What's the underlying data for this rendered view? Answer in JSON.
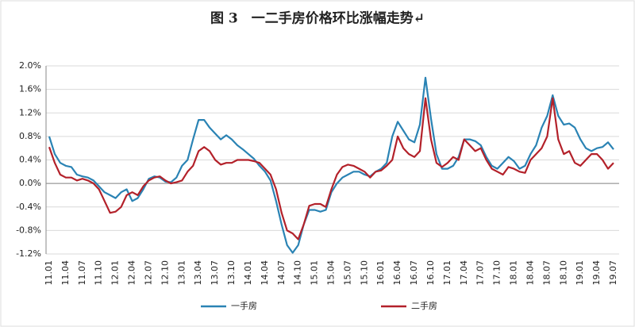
{
  "chart_data": {
    "type": "line",
    "title": "图 3　一二手房价格环比涨幅走势↵",
    "categories": [
      "11.01",
      null,
      null,
      "11.04",
      null,
      null,
      "11.07",
      null,
      null,
      "11.10",
      null,
      null,
      "12.01",
      null,
      null,
      "12.04",
      null,
      null,
      "12.07",
      null,
      null,
      "12.10",
      null,
      null,
      "13.01",
      null,
      null,
      "13.04",
      null,
      null,
      "13.07",
      null,
      null,
      "13.10",
      null,
      null,
      "14.01",
      null,
      null,
      "14.04",
      null,
      null,
      "14.07",
      null,
      null,
      "14.10",
      null,
      null,
      "15.01",
      null,
      null,
      "15.04",
      null,
      null,
      "15.07",
      null,
      null,
      "15.10",
      null,
      null,
      "16.01",
      null,
      null,
      "16.04",
      null,
      null,
      "16.07",
      null,
      null,
      "16.10",
      null,
      null,
      "17.01",
      null,
      null,
      "17.04",
      null,
      null,
      "17.07",
      null,
      null,
      "17.10",
      null,
      null,
      "18.01",
      null,
      null,
      "18.04",
      null,
      null,
      "18.07",
      null,
      null,
      "18.10",
      null,
      null,
      "19.01",
      null,
      null,
      "19.04",
      null,
      null,
      "19.07"
    ],
    "series": [
      {
        "name": "一手房",
        "color": "#2a83b4",
        "values": [
          0.8,
          0.5,
          0.35,
          0.3,
          0.28,
          0.15,
          0.12,
          0.1,
          0.05,
          -0.05,
          -0.15,
          -0.2,
          -0.25,
          -0.15,
          -0.1,
          -0.3,
          -0.25,
          -0.1,
          0.08,
          0.12,
          0.1,
          0.03,
          0.02,
          0.1,
          0.3,
          0.4,
          0.75,
          1.08,
          1.08,
          0.95,
          0.85,
          0.75,
          0.82,
          0.75,
          0.65,
          0.58,
          0.5,
          0.42,
          0.3,
          0.2,
          0.05,
          -0.3,
          -0.7,
          -1.05,
          -1.18,
          -1.05,
          -0.7,
          -0.45,
          -0.45,
          -0.48,
          -0.45,
          -0.15,
          0.0,
          0.1,
          0.15,
          0.2,
          0.2,
          0.15,
          0.12,
          0.2,
          0.25,
          0.35,
          0.8,
          1.05,
          0.9,
          0.75,
          0.7,
          1.0,
          1.8,
          1.1,
          0.5,
          0.25,
          0.25,
          0.3,
          0.45,
          0.75,
          0.75,
          0.72,
          0.65,
          0.45,
          0.3,
          0.25,
          0.35,
          0.45,
          0.38,
          0.25,
          0.3,
          0.5,
          0.65,
          0.95,
          1.15,
          1.5,
          1.15,
          1.0,
          1.02,
          0.95,
          0.75,
          0.6,
          0.55,
          0.6,
          0.62,
          0.7,
          0.58
        ]
      },
      {
        "name": "二手房",
        "color": "#b3212a",
        "values": [
          0.62,
          0.35,
          0.15,
          0.1,
          0.1,
          0.05,
          0.08,
          0.05,
          0.0,
          -0.1,
          -0.3,
          -0.5,
          -0.48,
          -0.4,
          -0.2,
          -0.15,
          -0.2,
          -0.05,
          0.05,
          0.1,
          0.12,
          0.05,
          0.0,
          0.02,
          0.05,
          0.2,
          0.3,
          0.55,
          0.62,
          0.55,
          0.4,
          0.32,
          0.35,
          0.35,
          0.4,
          0.4,
          0.4,
          0.38,
          0.35,
          0.25,
          0.15,
          -0.1,
          -0.5,
          -0.8,
          -0.85,
          -0.95,
          -0.7,
          -0.38,
          -0.35,
          -0.35,
          -0.4,
          -0.1,
          0.15,
          0.28,
          0.32,
          0.3,
          0.25,
          0.2,
          0.1,
          0.2,
          0.22,
          0.3,
          0.4,
          0.8,
          0.6,
          0.5,
          0.45,
          0.55,
          1.45,
          0.75,
          0.35,
          0.28,
          0.35,
          0.45,
          0.4,
          0.75,
          0.65,
          0.55,
          0.6,
          0.4,
          0.25,
          0.2,
          0.15,
          0.28,
          0.25,
          0.2,
          0.18,
          0.4,
          0.5,
          0.6,
          0.8,
          1.45,
          0.75,
          0.5,
          0.55,
          0.35,
          0.3,
          0.4,
          0.5,
          0.5,
          0.4,
          0.25,
          0.35
        ]
      }
    ],
    "ylim": [
      -1.2,
      2.0
    ],
    "yticks": [
      {
        "value": -1.2,
        "label": "-1.2%"
      },
      {
        "value": -0.8,
        "label": "-0.8%"
      },
      {
        "value": -0.4,
        "label": "-0.4%"
      },
      {
        "value": 0,
        "label": "0.0%"
      },
      {
        "value": 0.4,
        "label": "0.4%"
      },
      {
        "value": 0.8,
        "label": "0.8%"
      },
      {
        "value": 1.2,
        "label": "1.2%"
      },
      {
        "value": 1.6,
        "label": "1.6%"
      },
      {
        "value": 2.0,
        "label": "2.0%"
      }
    ],
    "grid": true,
    "legend": "bottom"
  }
}
